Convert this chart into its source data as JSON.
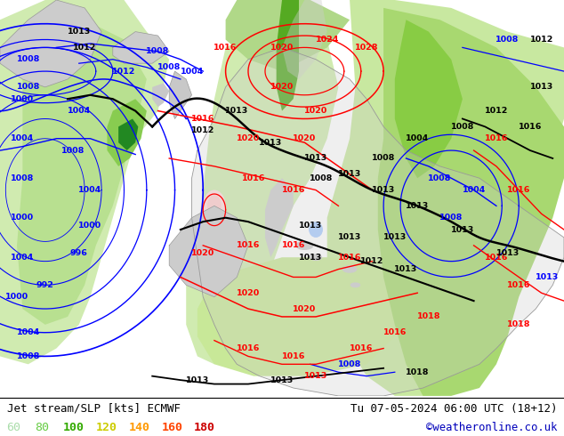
{
  "title_left": "Jet stream/SLP [kts] ECMWF",
  "title_right": "Tu 07-05-2024 06:00 UTC (18+12)",
  "credit": "©weatheronline.co.uk",
  "legend_values": [
    60,
    80,
    100,
    120,
    140,
    160,
    180
  ],
  "legend_colors": [
    "#aaddaa",
    "#66cc44",
    "#33aa00",
    "#cccc00",
    "#ff9900",
    "#ff4400",
    "#cc0000"
  ],
  "bg_color": "#f0f0f0",
  "map_bg": "#e8e8e8",
  "bottom_bar_color": "#ffffff",
  "contour_blue": "#0000ff",
  "contour_red": "#ff0000",
  "contour_black": "#000000",
  "land_color": "#c8c8c8",
  "sea_color": "#ddeedd",
  "jet_colors": [
    "#e8f5e8",
    "#c8e8b0",
    "#a0d870",
    "#70c040",
    "#44aa00",
    "#228800"
  ],
  "jet_thresholds": [
    60,
    80,
    100,
    120,
    140,
    160
  ]
}
